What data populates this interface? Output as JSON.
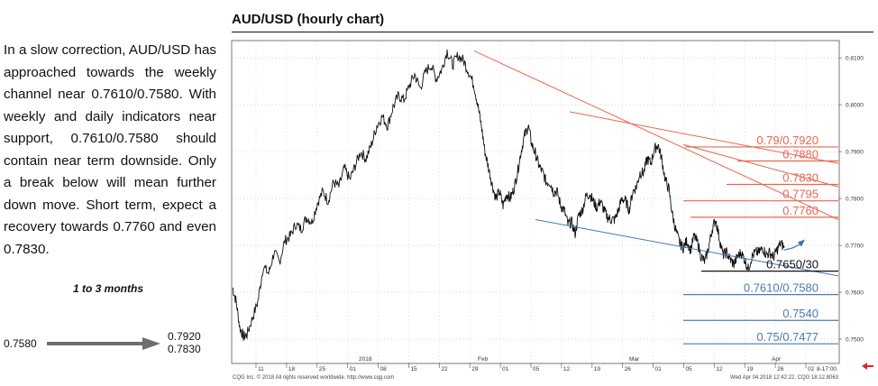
{
  "commentary": {
    "text": "In a slow correction, AUD/USD has approached towards the weekly channel near 0.7610/0.7580. With weekly and daily indicators near support, 0.7610/0.7580 should contain near term downside. Only a break below will mean further down move. Short term, expect a recovery towards 0.7760 and even 0.7830.",
    "horizon": "1 to 3 months",
    "from_level": "0.7580",
    "to_levels": [
      "0.7920",
      "0.7830"
    ]
  },
  "chart_title": "AUD/USD (hourly chart)",
  "chart_data": {
    "type": "line",
    "title": "AUD/USD (hourly chart)",
    "ylim": [
      0.745,
      0.8135
    ],
    "y_ticks": [
      0.75,
      0.76,
      0.77,
      0.78,
      0.79,
      0.8,
      0.81
    ],
    "y_tick_labels": [
      "0.7500",
      "0.7600",
      "0.7700",
      "0.7800",
      "0.7900",
      "0.8000",
      "0.8100"
    ],
    "x_tick_labels": [
      "11",
      "18",
      "25",
      "01",
      "08",
      "15",
      "22",
      "29",
      "01",
      "05",
      "12",
      "19",
      "26",
      "01",
      "05",
      "12",
      "19",
      "26",
      "02"
    ],
    "month_labels": [
      "2018",
      "Feb",
      "Mar",
      "Apr"
    ],
    "session_label": "8-17:00",
    "grid": true,
    "series": [
      {
        "x": [
          0,
          4,
          8,
          12,
          16,
          22,
          28,
          34,
          40,
          46,
          52,
          58,
          64,
          70,
          76,
          82,
          88,
          94,
          100,
          106,
          112,
          118,
          124,
          130,
          136,
          142,
          148,
          154,
          160,
          166,
          172,
          178,
          184,
          190,
          196,
          202,
          208,
          214,
          220,
          226,
          232,
          238,
          244,
          250,
          256,
          262,
          268,
          272,
          276,
          280,
          284,
          288,
          292,
          296,
          300,
          304,
          308,
          312,
          316,
          320,
          324,
          328,
          332,
          336,
          340,
          344,
          348,
          352,
          356,
          360,
          364,
          368,
          372,
          376,
          380,
          384,
          388,
          392,
          396,
          400,
          404,
          408,
          412,
          416,
          420,
          424,
          428,
          432,
          436,
          440,
          444,
          448,
          452,
          456,
          460,
          464,
          468,
          472,
          476,
          480,
          484,
          488,
          492,
          496,
          500,
          504,
          508,
          512,
          516,
          520,
          524,
          528,
          532,
          536,
          540,
          544,
          548,
          552,
          556,
          560,
          564,
          568,
          572,
          576,
          580,
          584,
          588,
          592,
          596,
          600,
          604,
          608,
          612
        ],
        "values": [
          0.761,
          0.758,
          0.7525,
          0.7505,
          0.751,
          0.7545,
          0.758,
          0.7655,
          0.764,
          0.7685,
          0.7665,
          0.771,
          0.772,
          0.7745,
          0.7735,
          0.776,
          0.775,
          0.779,
          0.7815,
          0.7795,
          0.7835,
          0.7825,
          0.7865,
          0.784,
          0.787,
          0.79,
          0.7885,
          0.7915,
          0.7955,
          0.7975,
          0.7955,
          0.7995,
          0.802,
          0.801,
          0.804,
          0.8065,
          0.8035,
          0.807,
          0.8085,
          0.8055,
          0.8075,
          0.8115,
          0.8085,
          0.8105,
          0.8095,
          0.807,
          0.804,
          0.8,
          0.7955,
          0.79,
          0.7865,
          0.783,
          0.78,
          0.7815,
          0.7785,
          0.781,
          0.78,
          0.782,
          0.7855,
          0.79,
          0.7935,
          0.7955,
          0.7915,
          0.7895,
          0.787,
          0.7855,
          0.7835,
          0.7835,
          0.7815,
          0.7815,
          0.7785,
          0.7775,
          0.7745,
          0.775,
          0.7725,
          0.7765,
          0.7775,
          0.7805,
          0.781,
          0.7795,
          0.778,
          0.7795,
          0.7775,
          0.776,
          0.7755,
          0.7755,
          0.7775,
          0.78,
          0.7795,
          0.7775,
          0.7815,
          0.7825,
          0.7855,
          0.7855,
          0.7885,
          0.7875,
          0.7905,
          0.7915,
          0.7885,
          0.784,
          0.782,
          0.7765,
          0.773,
          0.7705,
          0.7695,
          0.771,
          0.769,
          0.772,
          0.7705,
          0.7675,
          0.7665,
          0.7695,
          0.7735,
          0.7755,
          0.7715,
          0.768,
          0.7685,
          0.767,
          0.766,
          0.7675,
          0.7685,
          0.767,
          0.765,
          0.7675,
          0.7685,
          0.7685,
          0.7695,
          0.768,
          0.7685,
          0.7675,
          0.769,
          0.7705,
          0.7695
        ]
      }
    ],
    "trendlines": [
      {
        "color": "#e8664f",
        "from": [
          268,
          0.8115
        ],
        "to": [
          672,
          0.7755
        ]
      },
      {
        "color": "#e8664f",
        "from": [
          500,
          0.7915
        ],
        "to": [
          672,
          0.7825
        ]
      },
      {
        "color": "#e8664f",
        "from": [
          374,
          0.7985
        ],
        "to": [
          672,
          0.7875
        ]
      },
      {
        "color": "#4a7ab4",
        "from": [
          336,
          0.7755
        ],
        "to": [
          672,
          0.7635
        ]
      }
    ],
    "levels": [
      {
        "label": "0.79/0.7920",
        "value": 0.791,
        "color": "#e8664f"
      },
      {
        "label": "0.7880",
        "value": 0.788,
        "color": "#e8664f"
      },
      {
        "label": "0.7830",
        "value": 0.783,
        "color": "#e8664f"
      },
      {
        "label": "0.7795",
        "value": 0.7795,
        "color": "#e8664f"
      },
      {
        "label": "0.7760",
        "value": 0.776,
        "color": "#e8664f"
      },
      {
        "label": "0.7650/30",
        "value": 0.7645,
        "color": "#111111"
      },
      {
        "label": "0.7610/0.7580",
        "value": 0.7595,
        "color": "#4a7ab4"
      },
      {
        "label": "0.7540",
        "value": 0.754,
        "color": "#4a7ab4"
      },
      {
        "label": "0.75/0.7477",
        "value": 0.749,
        "color": "#4a7ab4"
      }
    ],
    "footer_left": "CQG Inc. © 2018 All rights reserved worldwide. http://www.cqg.com",
    "footer_right": "Wed Apr 04 2018 12:42:22, CQG 18.12.8063"
  },
  "colors": {
    "resistance": "#e8664f",
    "support": "#4a7ab4",
    "price": "#111111",
    "arrow_forecast": "#3a6fb0",
    "nav_arrow": "#d9282f"
  },
  "icons": {
    "navigation": "red-left-arrow-icon"
  }
}
